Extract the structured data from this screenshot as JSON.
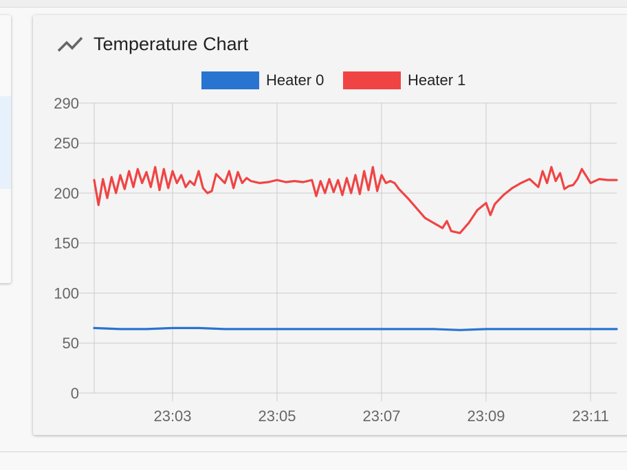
{
  "chart_card": {
    "title": "Temperature Chart",
    "icon": "show-chart-icon"
  },
  "chart_data": {
    "type": "line",
    "title": "Temperature Chart",
    "xlabel": "",
    "ylabel": "",
    "x_ticks": [
      "23:03",
      "23:05",
      "23:07",
      "23:09",
      "23:11"
    ],
    "y_ticks": [
      0,
      50,
      100,
      150,
      200,
      250,
      290
    ],
    "ylim": [
      0,
      290
    ],
    "xlim": [
      "23:01:30",
      "23:11:30"
    ],
    "grid": true,
    "legend": "top-center",
    "series": [
      {
        "name": "Heater 0",
        "color": "#2874d0",
        "x": [
          "23:01:30",
          "23:02:00",
          "23:02:30",
          "23:03:00",
          "23:03:30",
          "23:04:00",
          "23:05:00",
          "23:06:00",
          "23:07:00",
          "23:08:00",
          "23:08:30",
          "23:09:00",
          "23:10:00",
          "23:11:00",
          "23:11:30"
        ],
        "values": [
          65,
          64,
          64,
          65,
          65,
          64,
          64,
          64,
          64,
          64,
          63,
          64,
          64,
          64,
          64
        ]
      },
      {
        "name": "Heater 1",
        "color": "#f04444",
        "x": [
          "23:01:30",
          "23:01:35",
          "23:01:40",
          "23:01:45",
          "23:01:50",
          "23:01:55",
          "23:02:00",
          "23:02:05",
          "23:02:10",
          "23:02:15",
          "23:02:20",
          "23:02:25",
          "23:02:30",
          "23:02:35",
          "23:02:40",
          "23:02:45",
          "23:02:50",
          "23:02:55",
          "23:03:00",
          "23:03:05",
          "23:03:10",
          "23:03:15",
          "23:03:20",
          "23:03:25",
          "23:03:30",
          "23:03:35",
          "23:03:40",
          "23:03:45",
          "23:03:50",
          "23:04:00",
          "23:04:05",
          "23:04:10",
          "23:04:15",
          "23:04:20",
          "23:04:25",
          "23:04:30",
          "23:04:40",
          "23:04:50",
          "23:05:00",
          "23:05:10",
          "23:05:20",
          "23:05:30",
          "23:05:40",
          "23:05:45",
          "23:05:50",
          "23:05:55",
          "23:06:00",
          "23:06:05",
          "23:06:10",
          "23:06:15",
          "23:06:20",
          "23:06:25",
          "23:06:30",
          "23:06:35",
          "23:06:40",
          "23:06:45",
          "23:06:50",
          "23:06:55",
          "23:07:00",
          "23:07:05",
          "23:07:10",
          "23:07:15",
          "23:07:20",
          "23:07:30",
          "23:07:40",
          "23:07:50",
          "23:08:00",
          "23:08:10",
          "23:08:15",
          "23:08:20",
          "23:08:30",
          "23:08:40",
          "23:08:50",
          "23:09:00",
          "23:09:05",
          "23:09:10",
          "23:09:20",
          "23:09:30",
          "23:09:40",
          "23:09:50",
          "23:10:00",
          "23:10:05",
          "23:10:10",
          "23:10:15",
          "23:10:20",
          "23:10:25",
          "23:10:30",
          "23:10:35",
          "23:10:40",
          "23:10:45",
          "23:10:50",
          "23:11:00",
          "23:11:10",
          "23:11:20",
          "23:11:30"
        ],
        "values": [
          213,
          188,
          214,
          195,
          216,
          200,
          218,
          204,
          222,
          206,
          224,
          210,
          221,
          206,
          226,
          203,
          224,
          205,
          222,
          210,
          218,
          206,
          212,
          208,
          222,
          205,
          200,
          202,
          219,
          210,
          222,
          205,
          221,
          210,
          215,
          212,
          210,
          211,
          213,
          211,
          212,
          211,
          213,
          197,
          212,
          200,
          214,
          201,
          213,
          198,
          215,
          200,
          218,
          199,
          222,
          203,
          226,
          202,
          218,
          210,
          212,
          210,
          204,
          195,
          185,
          175,
          170,
          165,
          172,
          162,
          160,
          170,
          183,
          190,
          178,
          189,
          198,
          205,
          210,
          214,
          206,
          222,
          210,
          226,
          212,
          220,
          204,
          207,
          208,
          214,
          224,
          210,
          214,
          213,
          213
        ]
      }
    ]
  }
}
